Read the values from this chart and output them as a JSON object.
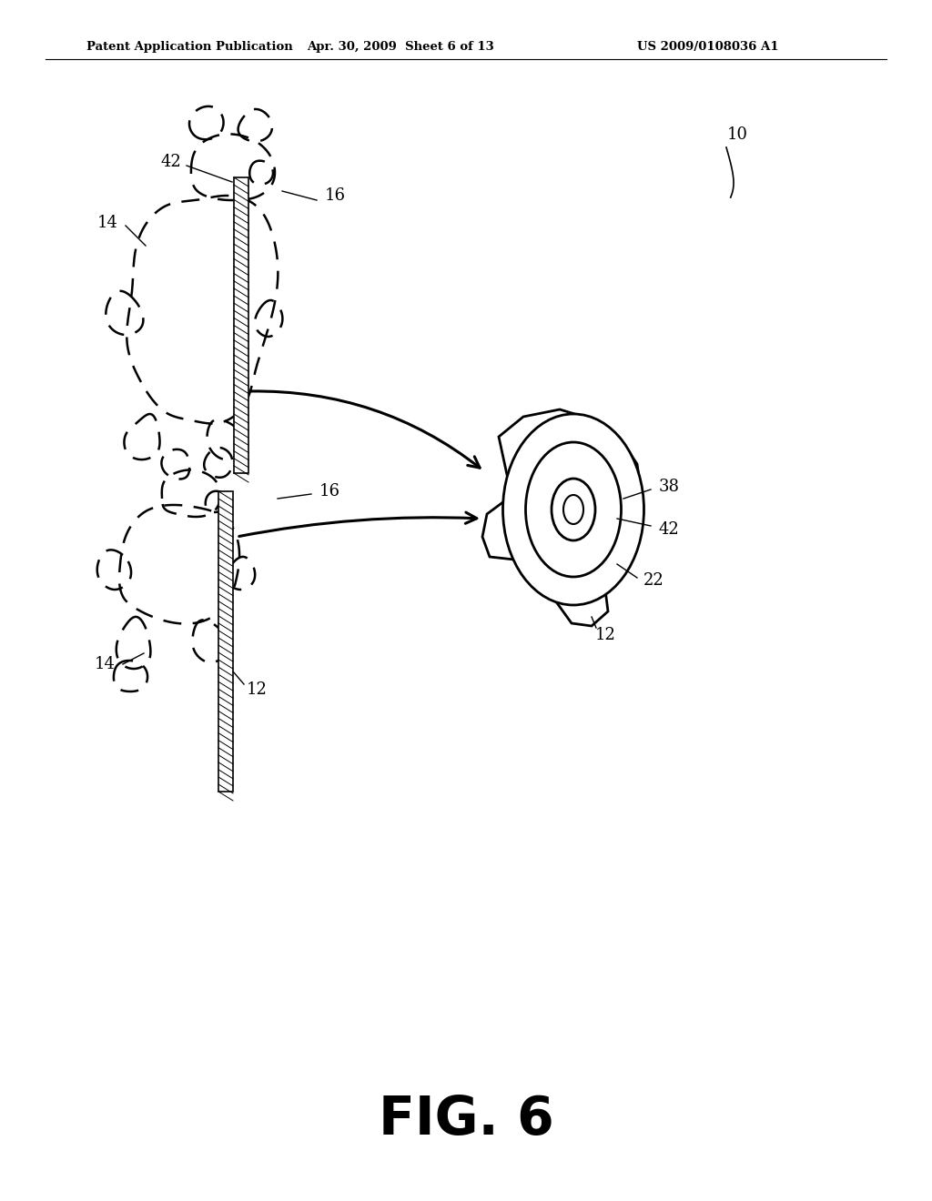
{
  "title_left": "Patent Application Publication",
  "title_mid": "Apr. 30, 2009  Sheet 6 of 13",
  "title_right": "US 2009/0108036 A1",
  "fig_label": "FIG. 6",
  "background_color": "#ffffff",
  "line_color": "#000000"
}
